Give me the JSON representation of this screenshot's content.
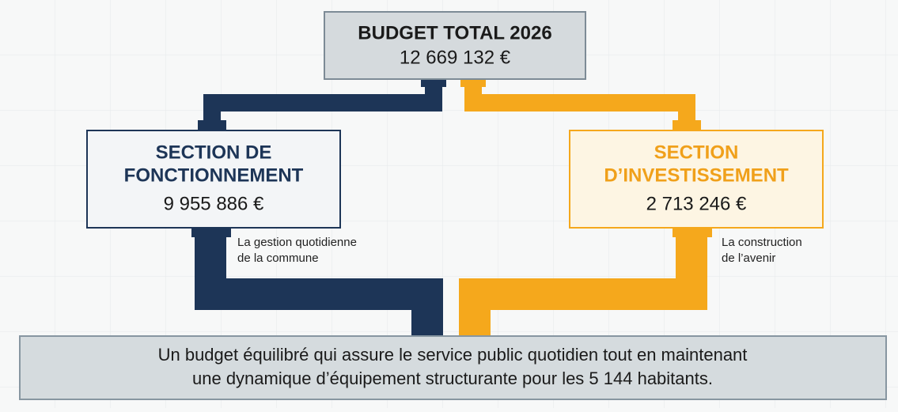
{
  "header": {
    "title": "BUDGET TOTAL 2026",
    "amount": "12 669 132 €"
  },
  "sections": [
    {
      "title_lines": [
        "SECTION DE",
        "FONCTIONNEMENT"
      ],
      "amount": "9 955 886 €",
      "note_lines": [
        "La gestion quotidienne",
        "de la commune"
      ]
    },
    {
      "title_lines": [
        "SECTION",
        "D’INVESTISSEMENT"
      ],
      "amount": "2 713 246 €",
      "note_lines": [
        "La construction",
        "de l’avenir"
      ]
    }
  ],
  "footer": {
    "text_lines": [
      "Un budget équilibré qui assure le service public quotidien tout en maintenant",
      "une dynamique d’équipement structurante pour les 5 144 habitants."
    ]
  }
}
